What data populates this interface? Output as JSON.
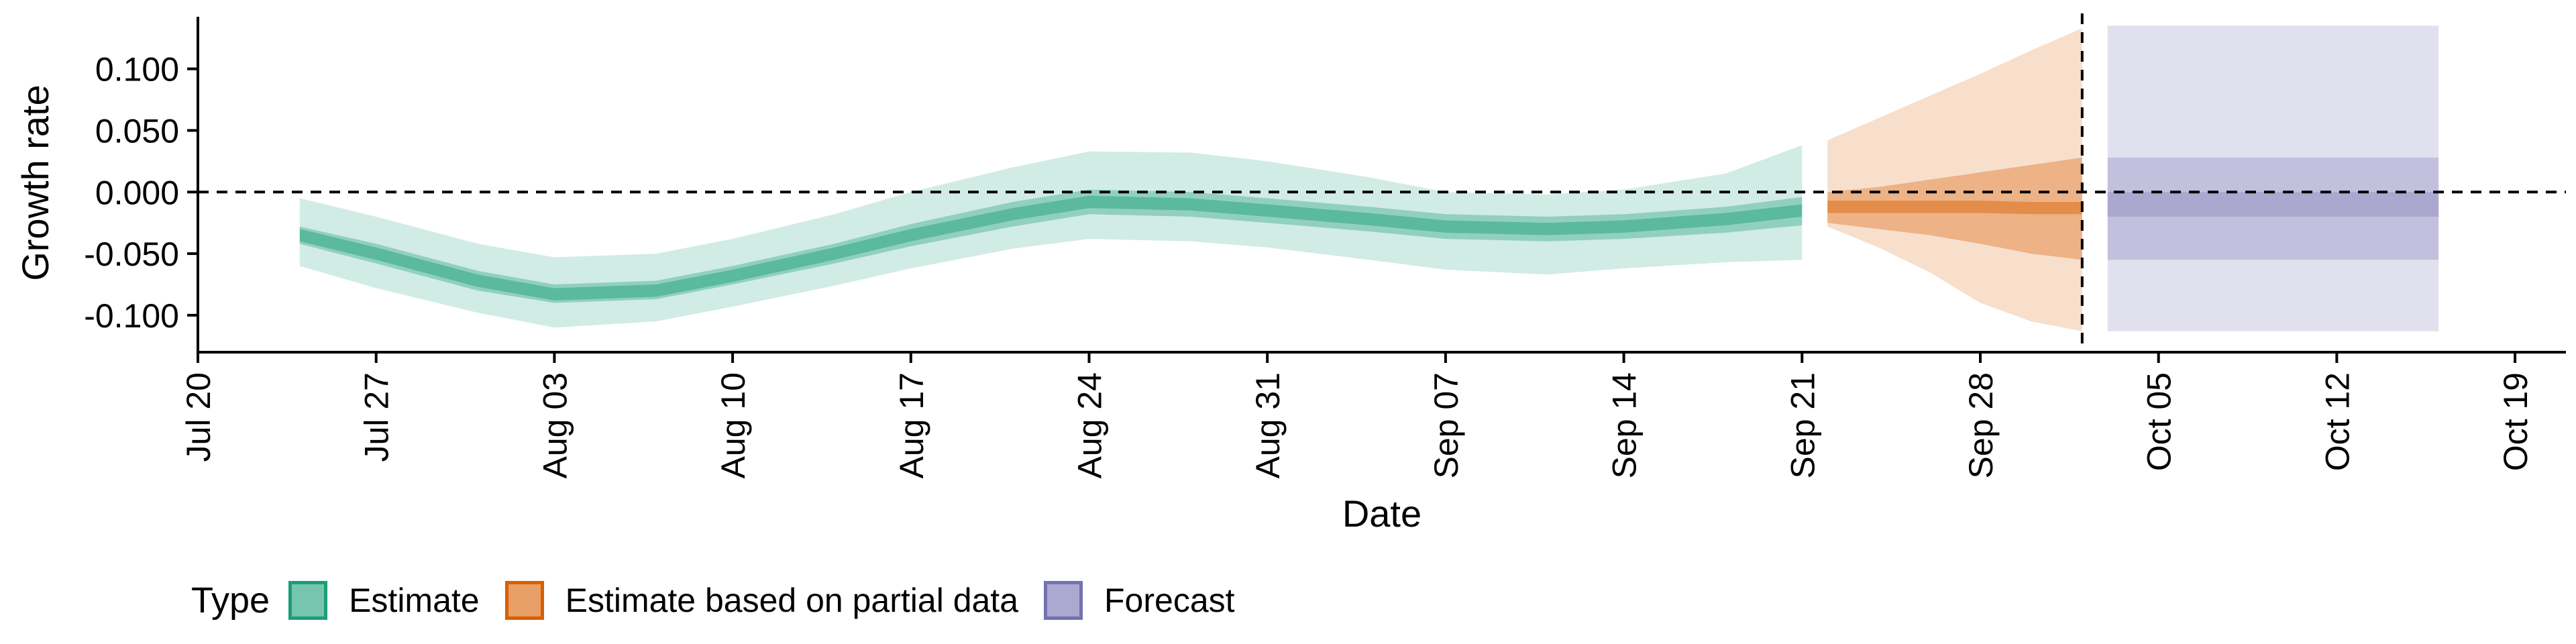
{
  "chart_data": {
    "type": "area",
    "xlabel": "Date",
    "ylabel": "Growth rate",
    "ylim": [
      -0.13,
      0.145
    ],
    "xlim": [
      "2020-07-20",
      "2020-10-21"
    ],
    "x_ticks": [
      "Jul 20",
      "Jul 27",
      "Aug 03",
      "Aug 10",
      "Aug 17",
      "Aug 24",
      "Aug 31",
      "Sep 07",
      "Sep 14",
      "Sep 21",
      "Sep 28",
      "Oct 05",
      "Oct 12",
      "Oct 19"
    ],
    "x_tick_dates": [
      "2020-07-20",
      "2020-07-27",
      "2020-08-03",
      "2020-08-10",
      "2020-08-17",
      "2020-08-24",
      "2020-08-31",
      "2020-09-07",
      "2020-09-14",
      "2020-09-21",
      "2020-09-28",
      "2020-10-05",
      "2020-10-12",
      "2020-10-19"
    ],
    "y_ticks": [
      -0.1,
      -0.05,
      0.0,
      0.05,
      0.1
    ],
    "y_tick_labels": [
      "-0.100",
      "-0.050",
      "0.000",
      "0.050",
      "0.100"
    ],
    "reference_lines": {
      "horizontal_y": 0.0,
      "vertical_date": "2020-10-02"
    },
    "grid": false,
    "legend": {
      "title": "Type",
      "placement": "bottom",
      "entries": [
        {
          "label": "Estimate",
          "fill": "#1b9e77",
          "border": "#1b9e77"
        },
        {
          "label": "Estimate based on partial data",
          "fill": "#d95f02",
          "border": "#d95f02"
        },
        {
          "label": "Forecast",
          "fill": "#7570b3",
          "border": "#7570b3"
        }
      ]
    },
    "series": [
      {
        "name": "Estimate",
        "color": "#1b9e77",
        "dates": [
          "2020-07-24",
          "2020-07-27",
          "2020-07-31",
          "2020-08-03",
          "2020-08-07",
          "2020-08-10",
          "2020-08-14",
          "2020-08-17",
          "2020-08-21",
          "2020-08-24",
          "2020-08-28",
          "2020-08-31",
          "2020-09-04",
          "2020-09-07",
          "2020-09-11",
          "2020-09-14",
          "2020-09-18",
          "2020-09-21"
        ],
        "median": [
          -0.035,
          -0.05,
          -0.072,
          -0.083,
          -0.08,
          -0.068,
          -0.05,
          -0.035,
          -0.018,
          -0.008,
          -0.01,
          -0.015,
          -0.022,
          -0.028,
          -0.03,
          -0.028,
          -0.022,
          -0.015
        ],
        "lower_50": [
          -0.042,
          -0.058,
          -0.08,
          -0.09,
          -0.087,
          -0.075,
          -0.058,
          -0.044,
          -0.028,
          -0.018,
          -0.02,
          -0.025,
          -0.032,
          -0.038,
          -0.04,
          -0.038,
          -0.033,
          -0.027
        ],
        "upper_50": [
          -0.028,
          -0.042,
          -0.064,
          -0.075,
          -0.072,
          -0.06,
          -0.042,
          -0.026,
          -0.008,
          0.002,
          0.0,
          -0.005,
          -0.012,
          -0.018,
          -0.02,
          -0.018,
          -0.012,
          -0.004
        ],
        "lower_90": [
          -0.06,
          -0.078,
          -0.098,
          -0.11,
          -0.105,
          -0.093,
          -0.076,
          -0.062,
          -0.046,
          -0.038,
          -0.04,
          -0.045,
          -0.055,
          -0.063,
          -0.067,
          -0.062,
          -0.057,
          -0.055
        ],
        "upper_90": [
          -0.005,
          -0.02,
          -0.042,
          -0.053,
          -0.05,
          -0.038,
          -0.018,
          0.0,
          0.02,
          0.033,
          0.032,
          0.025,
          0.012,
          0.0,
          -0.002,
          0.002,
          0.015,
          0.038
        ]
      },
      {
        "name": "Estimate based on partial data",
        "color": "#d95f02",
        "dates": [
          "2020-09-22",
          "2020-09-24",
          "2020-09-26",
          "2020-09-28",
          "2020-09-30",
          "2020-10-02"
        ],
        "median": [
          -0.012,
          -0.012,
          -0.012,
          -0.012,
          -0.013,
          -0.013
        ],
        "lower_50": [
          -0.025,
          -0.03,
          -0.035,
          -0.042,
          -0.05,
          -0.055
        ],
        "upper_50": [
          0.0,
          0.004,
          0.01,
          0.016,
          0.022,
          0.028
        ],
        "lower_90": [
          -0.028,
          -0.045,
          -0.065,
          -0.09,
          -0.105,
          -0.113
        ],
        "upper_90": [
          0.042,
          0.06,
          0.078,
          0.096,
          0.115,
          0.133
        ]
      },
      {
        "name": "Forecast",
        "color": "#7570b3",
        "dates": [
          "2020-10-03",
          "2020-10-16"
        ],
        "median": [
          -0.012,
          -0.012
        ],
        "lower_50": [
          -0.02,
          -0.02
        ],
        "upper_50": [
          0.0,
          0.0
        ],
        "lower_30": [
          -0.055,
          -0.055
        ],
        "upper_30": [
          0.028,
          0.028
        ],
        "lower_90": [
          -0.113,
          -0.113
        ],
        "upper_90": [
          0.135,
          0.135
        ]
      }
    ]
  }
}
